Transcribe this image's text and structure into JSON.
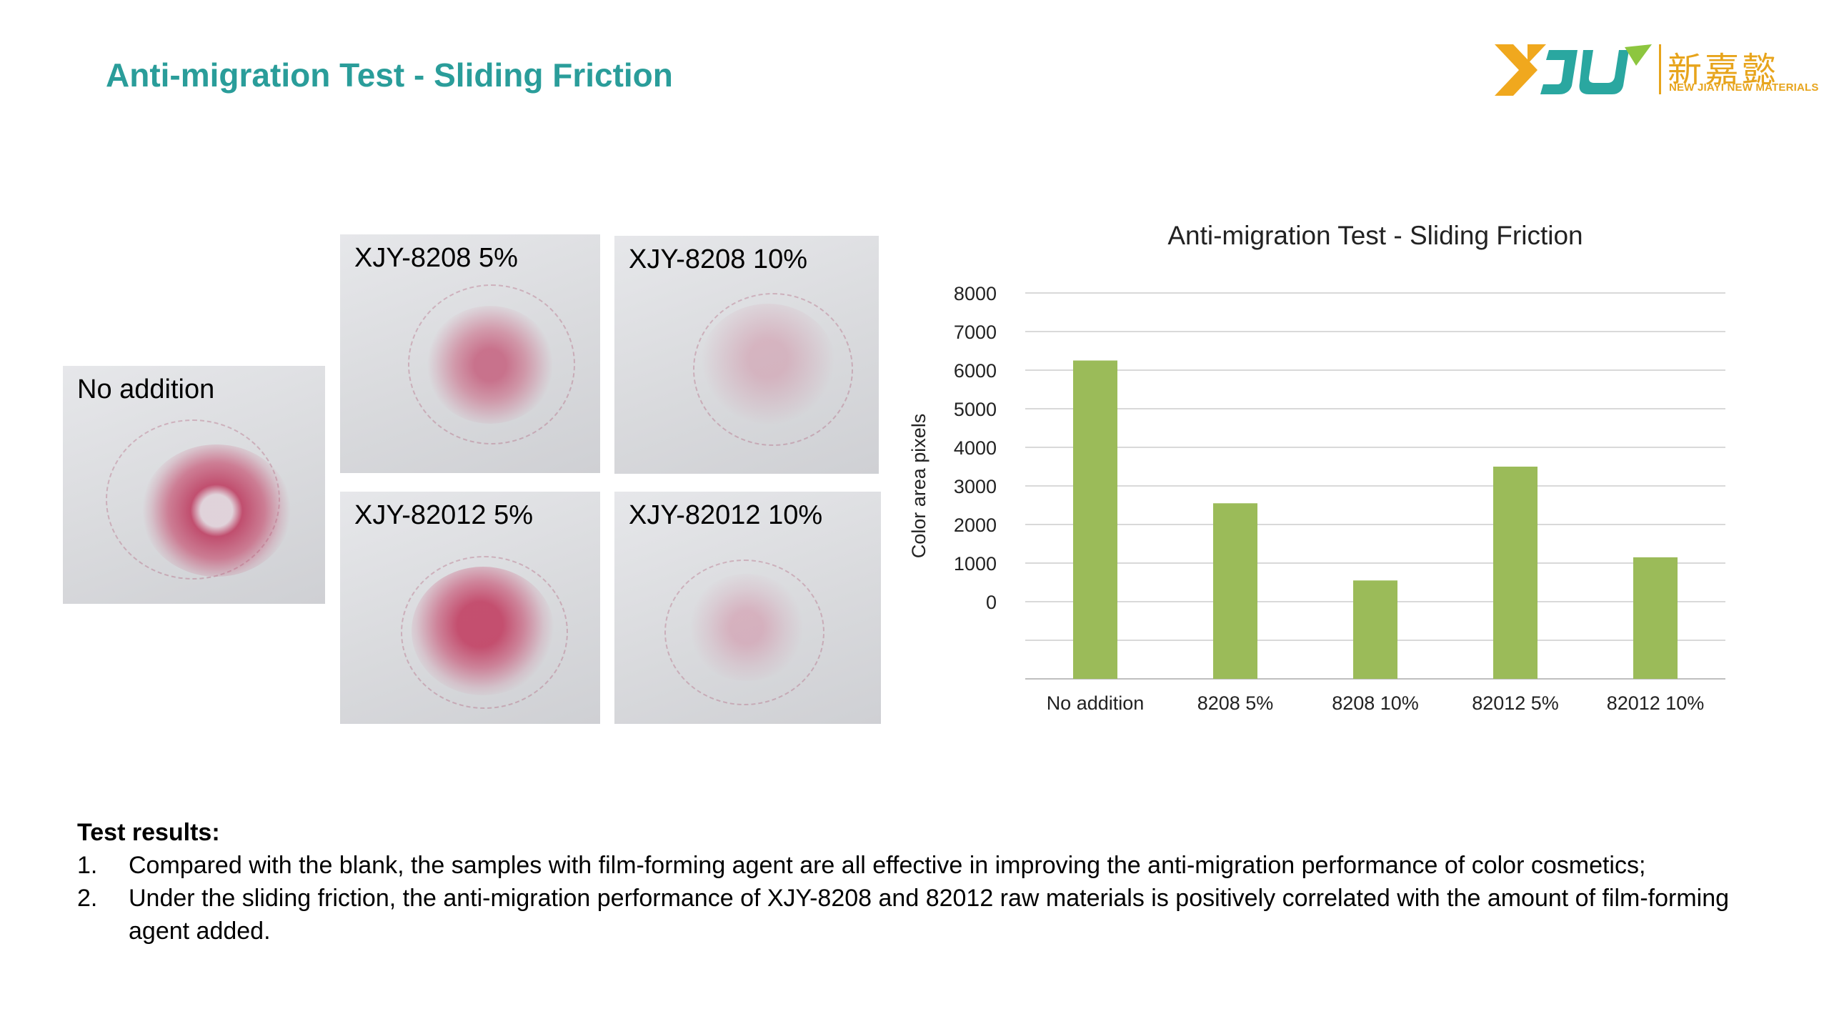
{
  "slide": {
    "title": "Anti-migration Test - Sliding Friction"
  },
  "logo": {
    "mark_text": "XJY",
    "chinese_name": "新嘉懿",
    "english_name": "NEW JIAYI NEW MATERIALS",
    "colors": {
      "orange": "#f0a81e",
      "green": "#2aa7a0"
    }
  },
  "photos": [
    {
      "label": "No addition",
      "stain": "heavy"
    },
    {
      "label": "XJY-8208 5%",
      "stain": "medium"
    },
    {
      "label": "XJY-8208 10%",
      "stain": "light"
    },
    {
      "label": "XJY-82012 5%",
      "stain": "heavy"
    },
    {
      "label": "XJY-82012 10%",
      "stain": "light"
    }
  ],
  "chart_data": {
    "type": "bar",
    "title": "Anti-migration Test - Sliding Friction",
    "xlabel": "",
    "ylabel": "Color area pixels",
    "categories": [
      "No addition",
      "8208 5%",
      "8208 10%",
      "82012 5%",
      "82012 10%"
    ],
    "values": [
      6250,
      2550,
      550,
      3500,
      1150
    ],
    "yticks": [
      "0",
      "1000",
      "2000",
      "3000",
      "4000",
      "5000",
      "6000",
      "7000",
      "8000"
    ],
    "ylim": [
      -2000,
      8000
    ],
    "grid": true,
    "bar_color": "#9bbb59",
    "grid_color": "#d9d9d9",
    "legend": "none"
  },
  "results": {
    "heading": "Test results:",
    "items": [
      {
        "num": "1.",
        "text": "Compared with the blank, the samples with film-forming agent are all effective in improving the anti-migration performance of color cosmetics;"
      },
      {
        "num": "2.",
        "text": "Under the sliding friction, the anti-migration performance of XJY-8208 and 82012 raw materials is positively correlated with the amount of film-forming agent added."
      }
    ]
  }
}
